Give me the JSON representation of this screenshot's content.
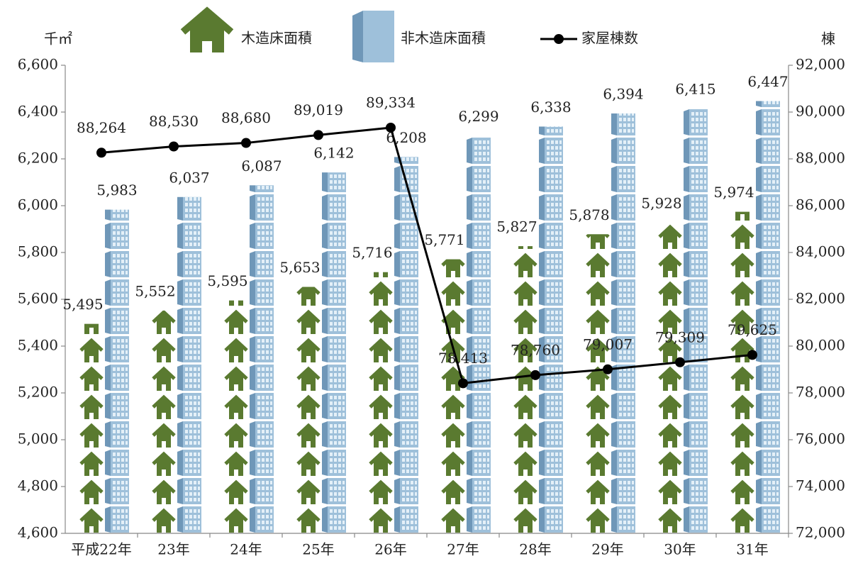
{
  "chart_data": {
    "type": "pictograph-bar-line",
    "y_unit": "千㎡",
    "y2_unit": "棟",
    "categories": [
      "平成22年",
      "23年",
      "24年",
      "25年",
      "26年",
      "27年",
      "28年",
      "29年",
      "30年",
      "31年"
    ],
    "series": [
      {
        "name": "木造床面積",
        "color": "#5a7a30",
        "values": [
          5495,
          5552,
          5595,
          5653,
          5716,
          5771,
          5827,
          5878,
          5928,
          5974
        ],
        "value_labels": [
          "5,495",
          "5,552",
          "5,595",
          "5,653",
          "5,716",
          "5,771",
          "5,827",
          "5,878",
          "5,928",
          "5,974"
        ]
      },
      {
        "name": "非木造床面積",
        "color": "#8fb3cf",
        "values": [
          5983,
          6037,
          6087,
          6142,
          6208,
          6299,
          6338,
          6394,
          6415,
          6447
        ],
        "value_labels": [
          "5,983",
          "6,037",
          "6,087",
          "6,142",
          "6,208",
          "6,299",
          "6,338",
          "6,394",
          "6,415",
          "6,447"
        ]
      },
      {
        "name": "家屋棟数",
        "color": "#000000",
        "axis": "y2",
        "values": [
          88264,
          88530,
          88680,
          89019,
          89334,
          78413,
          78760,
          79007,
          79309,
          79625
        ],
        "value_labels": [
          "88,264",
          "88,530",
          "88,680",
          "89,019",
          "89,334",
          "78,413",
          "78,760",
          "79,007",
          "79,309",
          "79,625"
        ]
      }
    ],
    "ylim": [
      4600,
      6600
    ],
    "yticks": [
      {
        "value": 4600,
        "label": "4,600"
      },
      {
        "value": 4800,
        "label": "4,800"
      },
      {
        "value": 5000,
        "label": "5,000"
      },
      {
        "value": 5200,
        "label": "5,200"
      },
      {
        "value": 5400,
        "label": "5,400"
      },
      {
        "value": 5600,
        "label": "5,600"
      },
      {
        "value": 5800,
        "label": "5,800"
      },
      {
        "value": 6000,
        "label": "6,000"
      },
      {
        "value": 6200,
        "label": "6,200"
      },
      {
        "value": 6400,
        "label": "6,400"
      },
      {
        "value": 6600,
        "label": "6,600"
      }
    ],
    "y2lim": [
      72000,
      92000
    ],
    "y2ticks": [
      {
        "value": 72000,
        "label": "72,000"
      },
      {
        "value": 74000,
        "label": "74,000"
      },
      {
        "value": 76000,
        "label": "76,000"
      },
      {
        "value": 78000,
        "label": "78,000"
      },
      {
        "value": 80000,
        "label": "80,000"
      },
      {
        "value": 82000,
        "label": "82,000"
      },
      {
        "value": 84000,
        "label": "84,000"
      },
      {
        "value": 86000,
        "label": "86,000"
      },
      {
        "value": 88000,
        "label": "88,000"
      },
      {
        "value": 90000,
        "label": "90,000"
      },
      {
        "value": 92000,
        "label": "92,000"
      }
    ]
  }
}
